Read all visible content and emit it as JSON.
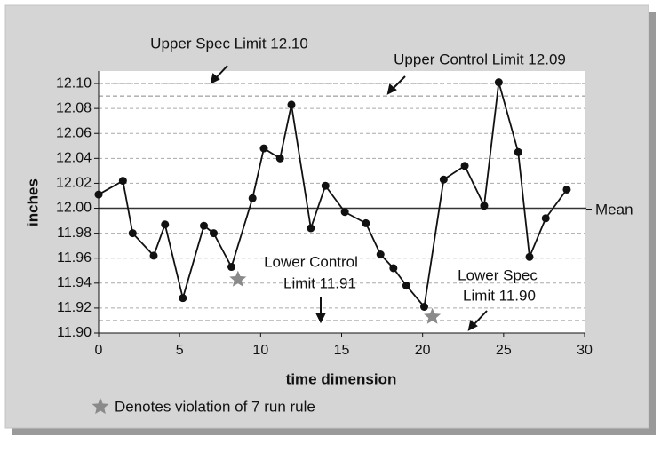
{
  "chart_data": {
    "type": "line",
    "xlabel": "time dimension",
    "ylabel": "inches",
    "xlim": [
      0,
      30
    ],
    "ylim": [
      11.9,
      12.11
    ],
    "xticks": [
      0,
      5,
      10,
      15,
      20,
      25,
      30
    ],
    "yticks": [
      {
        "value": 11.9,
        "label": "11.90"
      },
      11.92,
      11.94,
      11.96,
      11.98,
      {
        "value": 12.0,
        "label": "12.00"
      },
      12.02,
      12.04,
      12.06,
      12.08,
      {
        "value": 12.1,
        "label": "12.10"
      }
    ],
    "grid": true,
    "limits": {
      "usl": 12.1,
      "ucl": 12.09,
      "mean": 12.0,
      "lcl": 11.91,
      "lsl": 11.9
    },
    "annotations": [
      "Upper Spec Limit 12.10",
      "Upper Control Limit 12.09",
      "Lower Control",
      "Limit 11.91",
      "Lower Spec",
      "Limit 11.90",
      "Mean"
    ],
    "series": [
      {
        "color": "#111111",
        "marker": "circle",
        "x": [
          0,
          1.5,
          2.1,
          3.4,
          4.1,
          5.2,
          6.5,
          7.1,
          8.2,
          9.5,
          10.2,
          11.2,
          11.9,
          13.1,
          14.0,
          15.2,
          16.5,
          17.4,
          18.2,
          19.0,
          20.1,
          21.3,
          22.6,
          23.8,
          24.7,
          25.9,
          26.6,
          27.6,
          28.9
        ],
        "values": [
          12.011,
          12.022,
          11.98,
          11.962,
          11.987,
          11.928,
          11.986,
          11.98,
          11.953,
          12.008,
          12.048,
          12.04,
          12.083,
          11.984,
          12.018,
          11.997,
          11.988,
          11.963,
          11.952,
          11.938,
          11.921,
          12.023,
          12.034,
          12.002,
          12.101,
          12.045,
          11.961,
          11.992,
          12.015
        ]
      },
      {
        "name": "Denotes violation of 7 run rule",
        "color": "#8a8a8a",
        "marker": "star",
        "x": [
          8.6,
          20.6
        ],
        "values": [
          11.943,
          11.913
        ]
      }
    ]
  }
}
